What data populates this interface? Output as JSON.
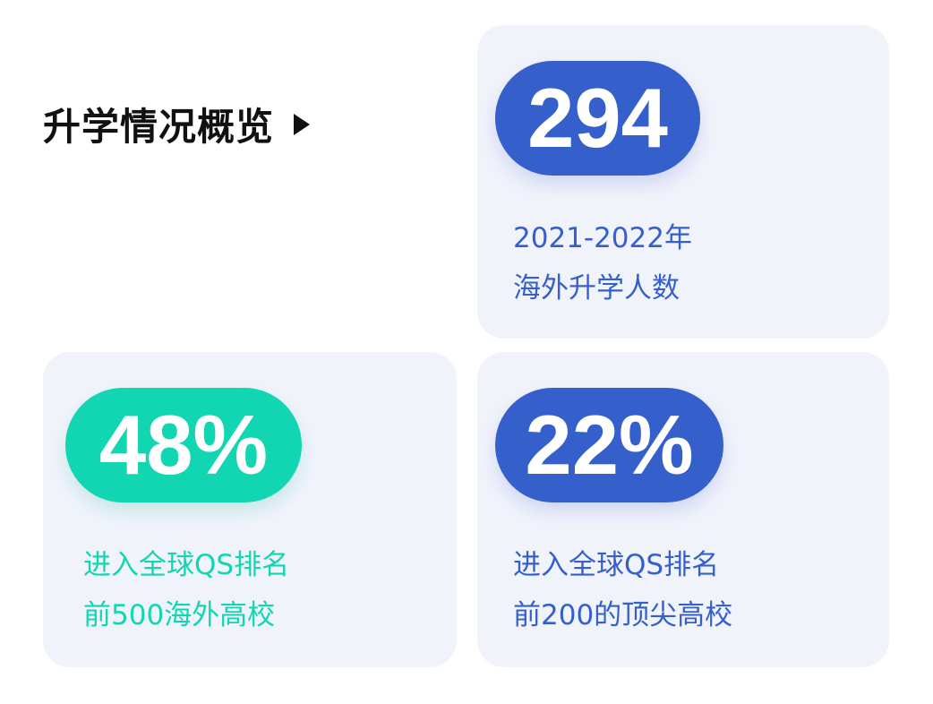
{
  "title": "升学情况概览",
  "colors": {
    "blue": "#3560cc",
    "green": "#12d6b2",
    "card_bg": "#f1f3fb"
  },
  "cards": [
    {
      "value": "294",
      "line1": "2021-2022年",
      "line2": "海外升学人数",
      "color": "blue"
    },
    {
      "value": "48%",
      "line1": "进入全球QS排名",
      "line2": "前500海外高校",
      "color": "green"
    },
    {
      "value": "22%",
      "line1": "进入全球QS排名",
      "line2": "前200的顶尖高校",
      "color": "blue"
    }
  ]
}
